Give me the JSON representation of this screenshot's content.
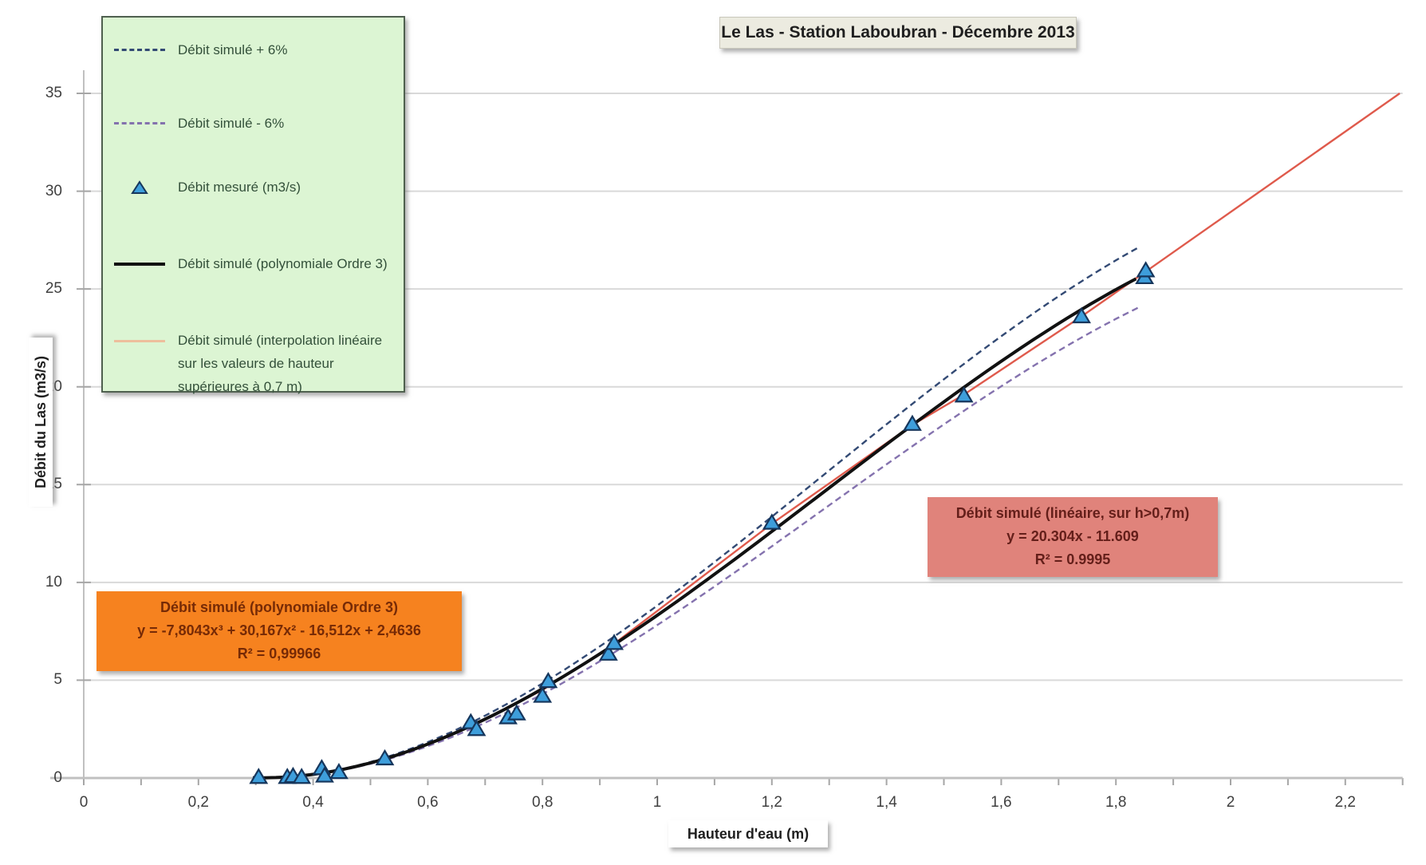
{
  "title": {
    "text": "Le Las - Station Laboubran - Décembre 2013"
  },
  "axes": {
    "x_label": "Hauteur d'eau (m)",
    "y_label": "Débit du Las (m3/s)"
  },
  "legend": {
    "items": [
      {
        "label": "Débit simulé + 6%",
        "swatch": "dashed-line",
        "color": "#334a74"
      },
      {
        "label": "Débit simulé - 6%",
        "swatch": "dashed-line",
        "color": "#8472ae"
      },
      {
        "label": "Débit mesuré (m3/s)",
        "swatch": "triangle-marker",
        "color": "#3e9edb"
      },
      {
        "label": "Débit simulé (polynomiale Ordre 3)",
        "swatch": "solid-line",
        "color": "#111111"
      },
      {
        "label": "Débit simulé (interpolation linéaire\nsur les valeurs de hauteur\nsupérieures à 0,7 m)",
        "swatch": "solid-line",
        "color": "#edbe9c"
      }
    ]
  },
  "annotations": {
    "polynomial": {
      "title": "Débit simulé (polynomiale Ordre 3)",
      "equation": "y = -7,8043x³ + 30,167x² - 16,512x + 2,4636",
      "r2": "R² = 0,99966",
      "bg_color": "#f6821f"
    },
    "linear": {
      "title": "Débit simulé (linéaire, sur h>0,7m)",
      "equation": "y = 20.304x - 11.609",
      "r2": "R² = 0.9995",
      "bg_color": "#e0837b"
    }
  },
  "chart_data": {
    "type": "scatter",
    "title": "Le Las - Station Laboubran - Décembre 2013",
    "xlabel": "Hauteur d'eau (m)",
    "ylabel": "Débit du Las (m3/s)",
    "xlim": [
      0,
      2.3
    ],
    "ylim": [
      0,
      35
    ],
    "grid": "horizontal",
    "legend_position": "top-left",
    "x_ticks": {
      "values": [
        0,
        0.2,
        0.4,
        0.6,
        0.8,
        1,
        1.2,
        1.4,
        1.6,
        1.8,
        2,
        2.2
      ],
      "labels": [
        "0",
        "0,2",
        "0,4",
        "0,6",
        "0,8",
        "1",
        "1,2",
        "1,4",
        "1,6",
        "1,8",
        "2",
        "2,2"
      ],
      "minor_step": 0.1
    },
    "y_ticks": {
      "values": [
        0,
        5,
        10,
        15,
        20,
        25,
        30,
        35
      ],
      "labels": [
        "0",
        "5",
        "10",
        "15",
        "20",
        "25",
        "30",
        "35"
      ]
    },
    "series": [
      {
        "name": "Débit simulé + 6%",
        "type": "polynomial_scaled",
        "scale": 1.06,
        "coefficients": [
          -7.8043,
          30.167,
          -16.512,
          2.4636
        ],
        "x_range": [
          0.3,
          1.852
        ],
        "style": "dashed",
        "color": "#334a74",
        "width": 2.4
      },
      {
        "name": "Débit simulé - 6%",
        "type": "polynomial_scaled",
        "scale": 0.94,
        "coefficients": [
          -7.8043,
          30.167,
          -16.512,
          2.4636
        ],
        "x_range": [
          0.3,
          1.852
        ],
        "style": "dashed",
        "color": "#8472ae",
        "width": 2.4
      },
      {
        "name": "Débit simulé (interpolation linéaire sur les valeurs de hauteur supérieures à 0,7 m)",
        "type": "polyline",
        "points": [
          [
            0.72,
            3.3
          ],
          [
            0.8,
            4.5
          ],
          [
            0.92,
            6.75
          ],
          [
            1.2,
            13.0
          ],
          [
            1.445,
            18.05
          ],
          [
            1.535,
            19.6
          ],
          [
            1.74,
            23.6
          ],
          [
            1.85,
            25.85
          ],
          [
            2.295,
            35.0
          ]
        ],
        "style": "solid",
        "color": "#df5a4c",
        "width": 2.4
      },
      {
        "name": "Débit simulé (polynomiale Ordre 3)",
        "type": "polynomial",
        "scale": 1.0,
        "coefficients": [
          -7.8043,
          30.167,
          -16.512,
          2.4636
        ],
        "x_range": [
          0.295,
          1.853
        ],
        "style": "solid",
        "color": "#111111",
        "width": 4
      },
      {
        "name": "Débit mesuré (m3/s)",
        "type": "points",
        "marker": "triangle",
        "fill": "#3e9edb",
        "stroke": "#16365c",
        "points": [
          [
            0.305,
            0.05
          ],
          [
            0.355,
            0.05
          ],
          [
            0.365,
            0.1
          ],
          [
            0.38,
            0.05
          ],
          [
            0.415,
            0.5
          ],
          [
            0.42,
            0.12
          ],
          [
            0.445,
            0.3
          ],
          [
            0.525,
            1.0
          ],
          [
            0.675,
            2.85
          ],
          [
            0.685,
            2.5
          ],
          [
            0.74,
            3.1
          ],
          [
            0.755,
            3.3
          ],
          [
            0.8,
            4.2
          ],
          [
            0.81,
            4.95
          ],
          [
            0.915,
            6.35
          ],
          [
            0.925,
            6.9
          ],
          [
            1.2,
            13.05
          ],
          [
            1.445,
            18.1
          ],
          [
            1.535,
            19.55
          ],
          [
            1.74,
            23.6
          ],
          [
            1.85,
            25.6
          ],
          [
            1.852,
            25.95
          ]
        ]
      }
    ],
    "style_colors": {
      "gridline": "#d9d9d9",
      "axis_line": "#c0c0c0",
      "tick_mark": "#a6a6a6",
      "tick_label": "#3f3f3f"
    }
  }
}
